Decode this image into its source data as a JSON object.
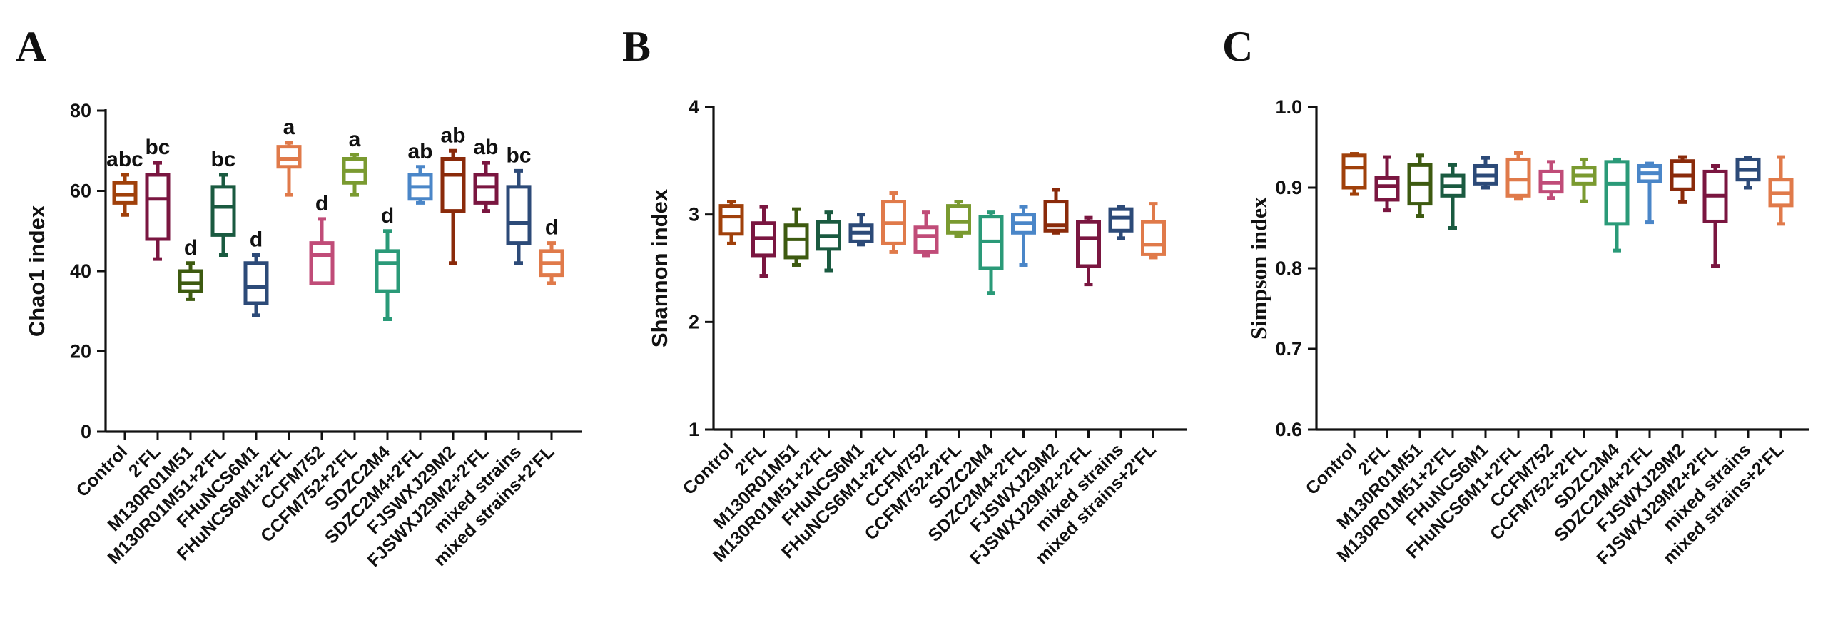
{
  "chart_data": [
    {
      "panel": "A",
      "type": "box",
      "title": "",
      "xlabel": "",
      "ylabel": "Chao1 index",
      "ylim": [
        0,
        80
      ],
      "yticks": [
        0,
        20,
        40,
        60,
        80
      ],
      "grid": false,
      "categories": [
        "Control",
        "2'FL",
        "M130R01M51",
        "M130R01M51+2'FL",
        "FHuNCS6M1",
        "FHuNCS6M1+2'FL",
        "CCFM752",
        "CCFM752+2'FL",
        "SDZC2M4",
        "SDZC2M4+2'FL",
        "FJSWXJ29M2",
        "FJSWXJ29M2+2'FL",
        "mixed strains",
        "mixed strains+2'FL"
      ],
      "colors": [
        "#a0400a",
        "#7a1640",
        "#3d5a10",
        "#1a5a40",
        "#2c4a78",
        "#e07a4a",
        "#c04c78",
        "#7a9a30",
        "#2a9a78",
        "#4a86c8",
        "#8a2a0a",
        "#7a1640",
        "#2c4a78",
        "#e07a4a"
      ],
      "boxes": [
        {
          "min": 54,
          "q1": 57,
          "median": 59,
          "q3": 62,
          "max": 64
        },
        {
          "min": 43,
          "q1": 48,
          "median": 58,
          "q3": 64,
          "max": 67
        },
        {
          "min": 33,
          "q1": 35,
          "median": 37,
          "q3": 40,
          "max": 42
        },
        {
          "min": 44,
          "q1": 49,
          "median": 56,
          "q3": 61,
          "max": 64
        },
        {
          "min": 29,
          "q1": 32,
          "median": 36,
          "q3": 42,
          "max": 44
        },
        {
          "min": 59,
          "q1": 66,
          "median": 68,
          "q3": 71,
          "max": 72
        },
        {
          "min": 37,
          "q1": 37,
          "median": 44,
          "q3": 47,
          "max": 53
        },
        {
          "min": 59,
          "q1": 62,
          "median": 65,
          "q3": 68,
          "max": 69
        },
        {
          "min": 28,
          "q1": 35,
          "median": 42,
          "q3": 45,
          "max": 50
        },
        {
          "min": 57,
          "q1": 58,
          "median": 61,
          "q3": 64,
          "max": 66
        },
        {
          "min": 42,
          "q1": 55,
          "median": 64,
          "q3": 68,
          "max": 70
        },
        {
          "min": 55,
          "q1": 57,
          "median": 61,
          "q3": 64,
          "max": 67
        },
        {
          "min": 42,
          "q1": 47,
          "median": 52,
          "q3": 61,
          "max": 65
        },
        {
          "min": 37,
          "q1": 39,
          "median": 42,
          "q3": 45,
          "max": 47
        }
      ],
      "significance": [
        "abc",
        "bc",
        "d",
        "bc",
        "d",
        "a",
        "d",
        "a",
        "d",
        "ab",
        "ab",
        "ab",
        "bc",
        "d"
      ]
    },
    {
      "panel": "B",
      "type": "box",
      "title": "",
      "xlabel": "",
      "ylabel": "Shannon index",
      "ylim": [
        1,
        4
      ],
      "yticks": [
        1,
        2,
        3,
        4
      ],
      "grid": false,
      "categories": [
        "Control",
        "2'FL",
        "M130R01M51",
        "M130R01M51+2'FL",
        "FHuNCS6M1",
        "FHuNCS6M1+2'FL",
        "CCFM752",
        "CCFM752+2'FL",
        "SDZC2M4",
        "SDZC2M4+2'FL",
        "FJSWXJ29M2",
        "FJSWXJ29M2+2'FL",
        "mixed strains",
        "mixed strains+2'FL"
      ],
      "colors": [
        "#a0400a",
        "#7a1640",
        "#3d5a10",
        "#1a5a40",
        "#2c4a78",
        "#e07a4a",
        "#c04c78",
        "#7a9a30",
        "#2a9a78",
        "#4a86c8",
        "#8a2a0a",
        "#7a1640",
        "#2c4a78",
        "#e07a4a"
      ],
      "boxes": [
        {
          "min": 2.73,
          "q1": 2.82,
          "median": 2.98,
          "q3": 3.08,
          "max": 3.12
        },
        {
          "min": 2.43,
          "q1": 2.62,
          "median": 2.78,
          "q3": 2.92,
          "max": 3.07
        },
        {
          "min": 2.53,
          "q1": 2.6,
          "median": 2.77,
          "q3": 2.9,
          "max": 3.05
        },
        {
          "min": 2.48,
          "q1": 2.68,
          "median": 2.8,
          "q3": 2.93,
          "max": 3.02
        },
        {
          "min": 2.72,
          "q1": 2.75,
          "median": 2.83,
          "q3": 2.9,
          "max": 3.0
        },
        {
          "min": 2.65,
          "q1": 2.73,
          "median": 2.92,
          "q3": 3.12,
          "max": 3.2
        },
        {
          "min": 2.62,
          "q1": 2.65,
          "median": 2.8,
          "q3": 2.88,
          "max": 3.02
        },
        {
          "min": 2.8,
          "q1": 2.83,
          "median": 2.93,
          "q3": 3.08,
          "max": 3.12
        },
        {
          "min": 2.27,
          "q1": 2.5,
          "median": 2.75,
          "q3": 2.98,
          "max": 3.02
        },
        {
          "min": 2.53,
          "q1": 2.83,
          "median": 2.92,
          "q3": 3.0,
          "max": 3.07
        },
        {
          "min": 2.83,
          "q1": 2.85,
          "median": 2.9,
          "q3": 3.12,
          "max": 3.23
        },
        {
          "min": 2.35,
          "q1": 2.52,
          "median": 2.78,
          "q3": 2.93,
          "max": 2.97
        },
        {
          "min": 2.78,
          "q1": 2.85,
          "median": 2.97,
          "q3": 3.05,
          "max": 3.07
        },
        {
          "min": 2.6,
          "q1": 2.63,
          "median": 2.72,
          "q3": 2.93,
          "max": 3.1
        }
      ]
    },
    {
      "panel": "C",
      "type": "box",
      "title": "",
      "xlabel": "",
      "ylabel": "Simpson index",
      "ylim": [
        0.6,
        1.0
      ],
      "yticks": [
        "0.6",
        "0.7",
        "0.8",
        "0.9",
        "1.0"
      ],
      "grid": false,
      "categories": [
        "Control",
        "2'FL",
        "M130R01M51",
        "M130R01M51+2'FL",
        "FHuNCS6M1",
        "FHuNCS6M1+2'FL",
        "CCFM752",
        "CCFM752+2'FL",
        "SDZC2M4",
        "SDZC2M4+2'FL",
        "FJSWXJ29M2",
        "FJSWXJ29M2+2'FL",
        "mixed strains",
        "mixed strains+2'FL"
      ],
      "colors": [
        "#a0400a",
        "#7a1640",
        "#3d5a10",
        "#1a5a40",
        "#2c4a78",
        "#e07a4a",
        "#c04c78",
        "#7a9a30",
        "#2a9a78",
        "#4a86c8",
        "#8a2a0a",
        "#7a1640",
        "#2c4a78",
        "#e07a4a"
      ],
      "boxes": [
        {
          "min": 0.892,
          "q1": 0.9,
          "median": 0.925,
          "q3": 0.94,
          "max": 0.942
        },
        {
          "min": 0.872,
          "q1": 0.885,
          "median": 0.902,
          "q3": 0.912,
          "max": 0.938
        },
        {
          "min": 0.865,
          "q1": 0.88,
          "median": 0.905,
          "q3": 0.928,
          "max": 0.94
        },
        {
          "min": 0.85,
          "q1": 0.89,
          "median": 0.902,
          "q3": 0.915,
          "max": 0.928
        },
        {
          "min": 0.9,
          "q1": 0.905,
          "median": 0.915,
          "q3": 0.927,
          "max": 0.937
        },
        {
          "min": 0.886,
          "q1": 0.89,
          "median": 0.91,
          "q3": 0.935,
          "max": 0.943
        },
        {
          "min": 0.887,
          "q1": 0.895,
          "median": 0.906,
          "q3": 0.92,
          "max": 0.932
        },
        {
          "min": 0.883,
          "q1": 0.905,
          "median": 0.915,
          "q3": 0.925,
          "max": 0.935
        },
        {
          "min": 0.822,
          "q1": 0.855,
          "median": 0.905,
          "q3": 0.932,
          "max": 0.935
        },
        {
          "min": 0.857,
          "q1": 0.908,
          "median": 0.918,
          "q3": 0.927,
          "max": 0.93
        },
        {
          "min": 0.882,
          "q1": 0.898,
          "median": 0.915,
          "q3": 0.933,
          "max": 0.938
        },
        {
          "min": 0.803,
          "q1": 0.858,
          "median": 0.89,
          "q3": 0.92,
          "max": 0.927
        },
        {
          "min": 0.9,
          "q1": 0.91,
          "median": 0.922,
          "q3": 0.935,
          "max": 0.937
        },
        {
          "min": 0.855,
          "q1": 0.878,
          "median": 0.893,
          "q3": 0.91,
          "max": 0.938
        }
      ]
    }
  ]
}
